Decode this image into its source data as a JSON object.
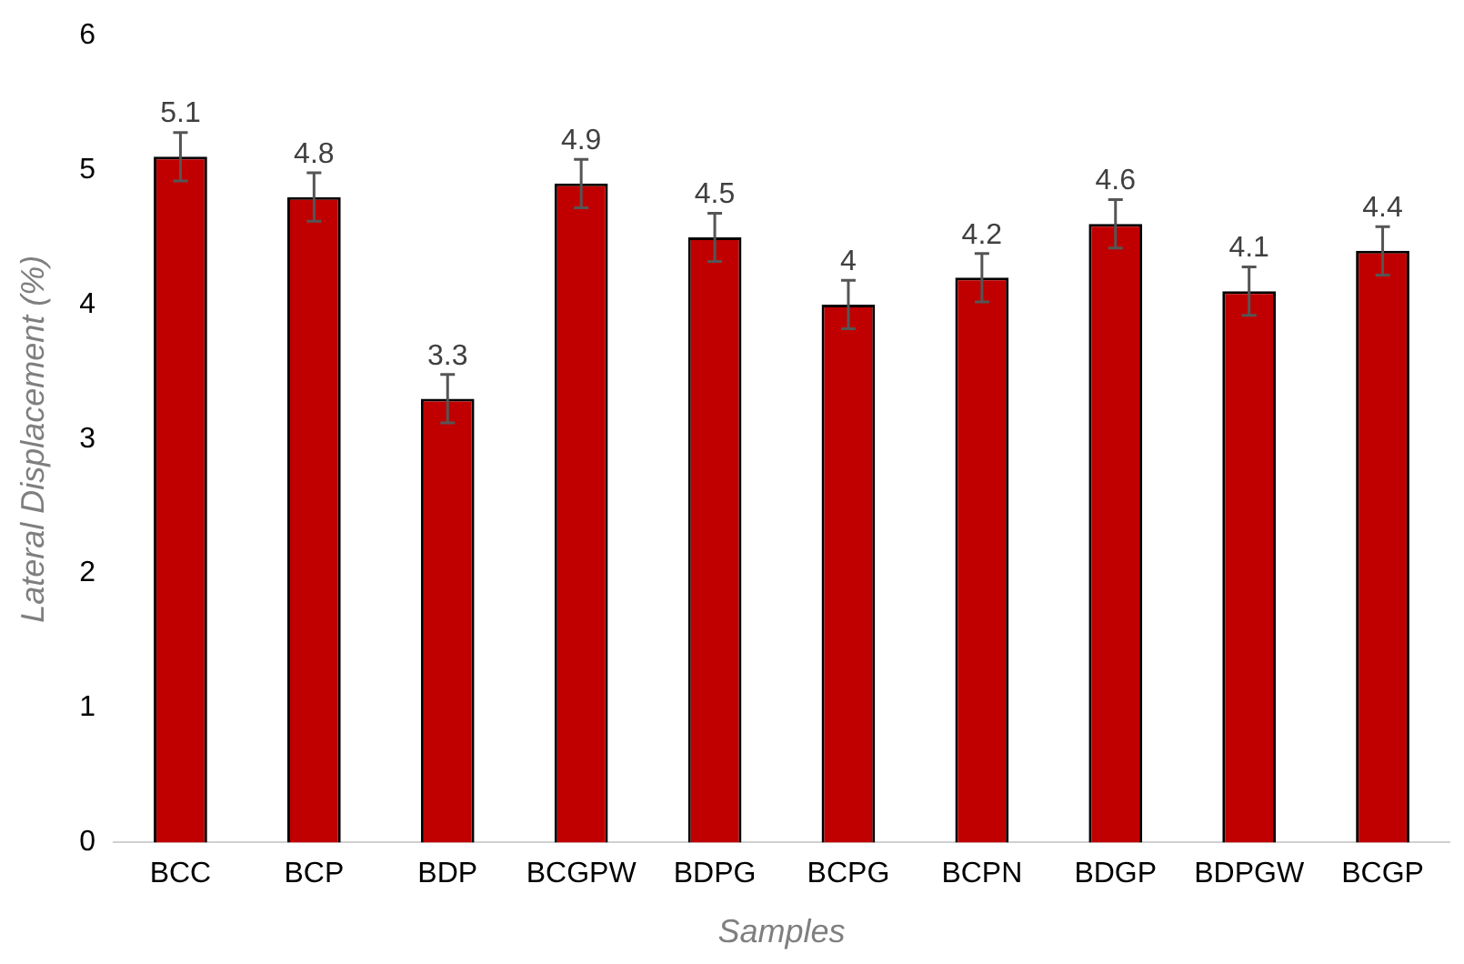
{
  "chart_data": {
    "type": "bar",
    "xlabel": "Samples",
    "ylabel": "Lateral Displacement (%)",
    "categories": [
      "BCC",
      "BCP",
      "BDP",
      "BCGPW",
      "BDPG",
      "BCPG",
      "BCPN",
      "BDGP",
      "BDPGW",
      "BCGP"
    ],
    "values": [
      5.1,
      4.8,
      3.3,
      4.9,
      4.5,
      4.0,
      4.2,
      4.6,
      4.1,
      4.4
    ],
    "errors": [
      0.18,
      0.18,
      0.18,
      0.18,
      0.18,
      0.18,
      0.18,
      0.18,
      0.18,
      0.18
    ],
    "color": "#c00000",
    "ylim": [
      0,
      6
    ],
    "yticks": [
      0,
      1,
      2,
      3,
      4,
      5,
      6
    ],
    "grid": false,
    "legend": false,
    "data_labels": true
  }
}
